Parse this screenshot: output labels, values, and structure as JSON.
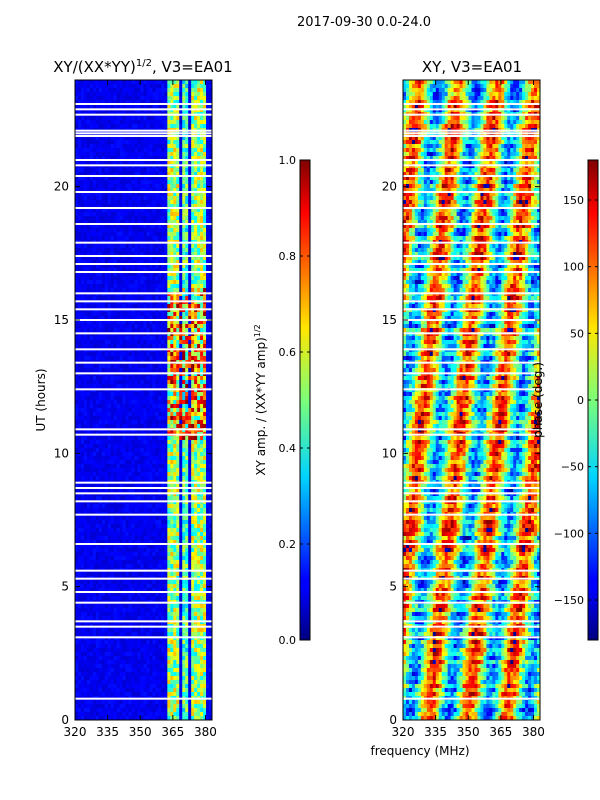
{
  "suptitle": "2017-09-30 0.0-24.0",
  "xlabel": "frequency (MHz)",
  "chart_data": [
    {
      "type": "heatmap",
      "title": "XY/(XX*YY)^{1/2}, V3=EA01",
      "title_main": "XY/(XX*YY)",
      "title_sup": "1/2",
      "title_tail": ", V3=EA01",
      "xlabel": "frequency (MHz)",
      "ylabel": "UT (hours)",
      "x_range": [
        320,
        383
      ],
      "y_range": [
        0,
        24
      ],
      "x_ticks": [
        320,
        335,
        350,
        365,
        380
      ],
      "y_ticks": [
        0,
        5,
        10,
        15,
        20
      ],
      "colorbar": {
        "label_main": "XY amp. / (XX*YY amp)",
        "label_sup": "1/2",
        "range": [
          0.0,
          1.0
        ],
        "ticks": [
          "0.0",
          "0.2",
          "0.4",
          "0.6",
          "0.8",
          "1.0"
        ],
        "colormap": "jet"
      },
      "flagged_ut_hours": [
        0.8,
        3.1,
        3.5,
        3.7,
        4.4,
        4.8,
        5.3,
        5.6,
        6.6,
        7.7,
        8.2,
        8.5,
        8.7,
        8.9,
        10.7,
        10.9,
        12.4,
        13.0,
        13.4,
        13.9,
        14.5,
        15.0,
        15.4,
        15.7,
        16.0,
        16.8,
        17.1,
        17.4,
        17.9,
        18.6,
        19.2,
        19.8,
        20.4,
        20.8,
        21.0,
        21.9,
        22.0,
        22.1,
        22.7,
        22.9,
        23.1
      ]
    },
    {
      "type": "heatmap",
      "title": "XY, V3=EA01",
      "xlabel": "frequency (MHz)",
      "ylabel": "",
      "x_range": [
        320,
        383
      ],
      "y_range": [
        0,
        24
      ],
      "x_ticks": [
        320,
        335,
        350,
        365,
        380
      ],
      "y_ticks": [
        0,
        5,
        10,
        15,
        20
      ],
      "colorbar": {
        "label": "phase (deg.)",
        "range": [
          -180,
          180
        ],
        "ticks": [
          "150",
          "100",
          "50",
          "0",
          "−50",
          "−100",
          "−150"
        ],
        "colormap": "jet"
      },
      "flagged_ut_hours": [
        0.8,
        3.1,
        3.5,
        3.7,
        4.4,
        4.8,
        5.3,
        5.6,
        6.6,
        7.7,
        8.2,
        8.5,
        8.7,
        8.9,
        10.7,
        10.9,
        12.4,
        13.0,
        13.4,
        13.9,
        14.5,
        15.0,
        15.4,
        15.7,
        16.0,
        16.8,
        17.1,
        17.4,
        17.9,
        18.6,
        19.2,
        19.8,
        20.4,
        20.8,
        21.0,
        21.9,
        22.0,
        22.1,
        22.7,
        22.9,
        23.1
      ]
    }
  ]
}
